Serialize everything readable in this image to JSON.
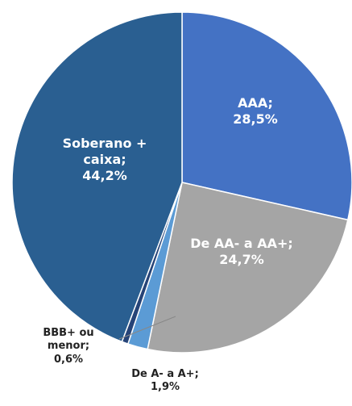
{
  "chart_data": {
    "type": "pie",
    "categories": [
      "AAA;",
      "De AA- a AA+;",
      "De A- a A+;",
      "BBB+ ou menor;",
      "Soberano + caixa;"
    ],
    "values": [
      28.5,
      24.7,
      1.9,
      0.6,
      44.2
    ],
    "value_labels": [
      "28,5%",
      "24,7%",
      "1,9%",
      "0,6%",
      "44,2%"
    ],
    "colors": [
      "#4472c4",
      "#a5a5a5",
      "#5b9bd5",
      "#264478",
      "#2a5f91"
    ]
  }
}
